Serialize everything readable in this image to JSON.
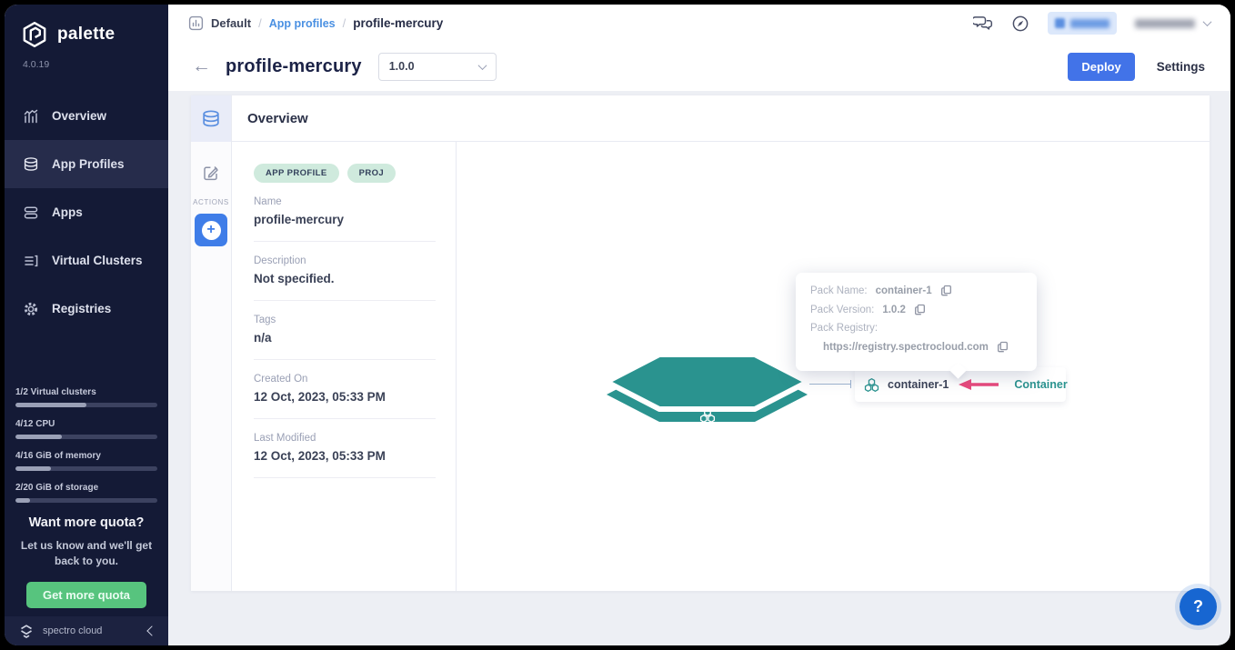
{
  "app": {
    "brand": "palette",
    "version": "4.0.19",
    "footer_brand": "spectro cloud",
    "help_label": "?"
  },
  "colors": {
    "accent_blue": "#4273e8",
    "teal": "#2a938f",
    "arrow_pink": "#e8487c",
    "green": "#57c47e",
    "sidebar_bg": "#141a36"
  },
  "sidebar": {
    "items": [
      {
        "label": "Overview",
        "icon": "chart-icon"
      },
      {
        "label": "App Profiles",
        "icon": "stack-icon"
      },
      {
        "label": "Apps",
        "icon": "apps-icon"
      },
      {
        "label": "Virtual Clusters",
        "icon": "list-icon"
      },
      {
        "label": "Registries",
        "icon": "gear-icon"
      }
    ],
    "quotas": [
      {
        "label": "1/2 Virtual clusters",
        "percent": 50
      },
      {
        "label": "4/12 CPU",
        "percent": 33
      },
      {
        "label": "4/16 GiB of memory",
        "percent": 25
      },
      {
        "label": "2/20 GiB of storage",
        "percent": 10
      }
    ],
    "quota_title": "Want more quota?",
    "quota_text": "Let us know and we'll get back to you.",
    "quota_button": "Get more quota"
  },
  "breadcrumb": {
    "project": "Default",
    "sep": "/",
    "section": "App profiles",
    "page": "profile-mercury"
  },
  "header": {
    "title": "profile-mercury",
    "version_selected": "1.0.0",
    "deploy_label": "Deploy",
    "settings_label": "Settings"
  },
  "panel": {
    "title": "Overview",
    "actions_label": "ACTIONS",
    "badges": [
      "APP PROFILE",
      "PROJ"
    ],
    "fields": [
      {
        "label": "Name",
        "value": "profile-mercury"
      },
      {
        "label": "Description",
        "value": "Not specified."
      },
      {
        "label": "Tags",
        "value": "n/a"
      },
      {
        "label": "Created On",
        "value": "12 Oct, 2023, 05:33 PM"
      },
      {
        "label": "Last Modified",
        "value": "12 Oct, 2023, 05:33 PM"
      }
    ]
  },
  "diagram": {
    "tooltip": {
      "pack_name_label": "Pack Name:",
      "pack_name": "container-1",
      "pack_version_label": "Pack Version:",
      "pack_version": "1.0.2",
      "pack_registry_label": "Pack Registry:",
      "pack_registry_url": "https://registry.spectrocloud.com"
    },
    "pack_name": "container-1",
    "pack_type": "Container"
  }
}
